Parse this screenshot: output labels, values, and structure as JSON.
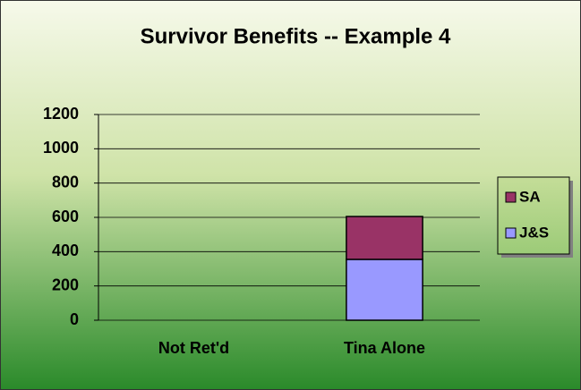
{
  "chart_data": {
    "type": "stacked_bar",
    "title": "Survivor Benefits -- Example 4",
    "categories": [
      "Not Ret'd",
      "Tina Alone"
    ],
    "series": [
      {
        "name": "J&S",
        "color": "#9999ff",
        "values": [
          null,
          355
        ]
      },
      {
        "name": "SA",
        "color": "#993366",
        "values": [
          null,
          250
        ]
      }
    ],
    "ylim": [
      0,
      1200
    ],
    "yticks": [
      0,
      200,
      400,
      600,
      800,
      1000,
      1200
    ],
    "grid": true,
    "legend": "right"
  }
}
